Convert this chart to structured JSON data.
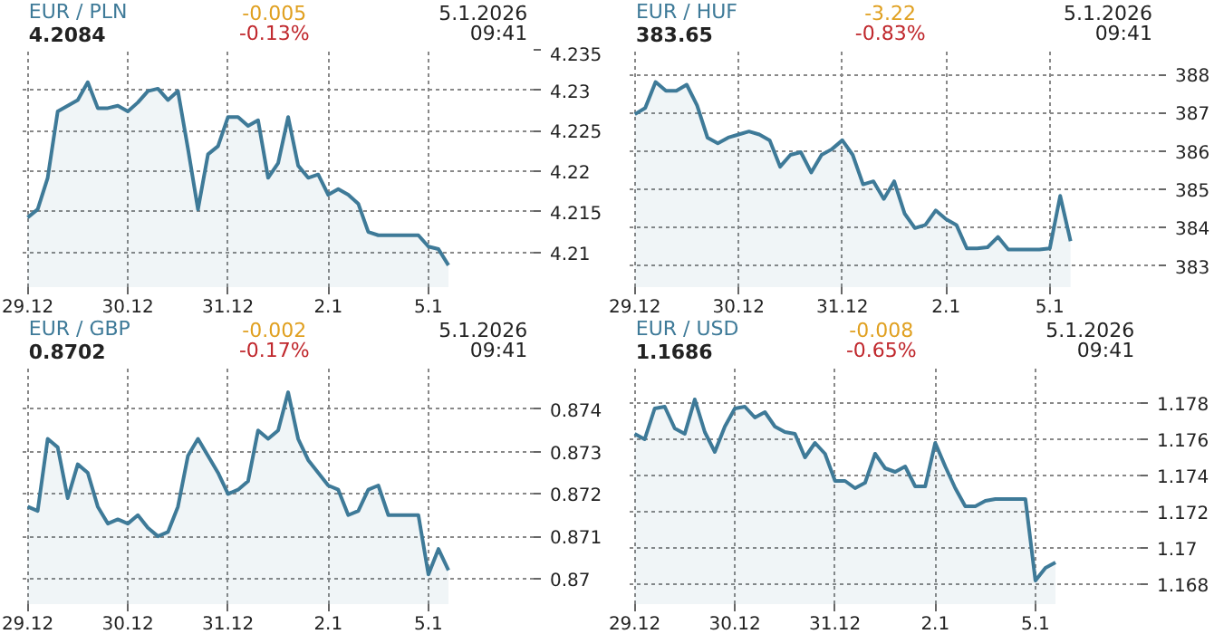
{
  "chart_data": [
    {
      "type": "area",
      "title": "EUR / PLN",
      "subtitle": "4.2084",
      "annotations": [
        "-0.005",
        "-0.13%",
        "5.1.2026",
        "09:41"
      ],
      "grid": true,
      "categories": [
        "29.12",
        null,
        null,
        null,
        null,
        null,
        null,
        null,
        null,
        null,
        "30.12",
        null,
        null,
        null,
        null,
        null,
        null,
        null,
        null,
        null,
        "31.12",
        null,
        null,
        null,
        null,
        null,
        null,
        null,
        null,
        null,
        "2.1",
        null,
        null,
        null,
        null,
        null,
        null,
        null,
        null,
        null,
        "5.1",
        null,
        null,
        null,
        null,
        null,
        null,
        null,
        null,
        null,
        null
      ],
      "ylim": [
        4.2057,
        4.235
      ],
      "yticks": [
        4.21,
        4.215,
        4.22,
        4.225,
        4.23,
        4.235
      ],
      "series": [
        {
          "color": "#3e7a98",
          "values": [
            4.2143,
            4.2153,
            4.2192,
            4.2274,
            4.2281,
            4.2288,
            4.231,
            4.2278,
            4.2278,
            4.2281,
            4.2274,
            4.2285,
            4.2299,
            4.2302,
            4.2288,
            4.2299,
            4.2228,
            4.2153,
            4.2221,
            4.2231,
            4.2267,
            4.2267,
            4.2256,
            4.2263,
            4.2192,
            4.221,
            4.2267,
            4.2207,
            4.2192,
            4.2196,
            4.2171,
            4.2178,
            4.2171,
            4.216,
            4.2125,
            4.2121,
            4.2121,
            4.2121,
            4.2121,
            4.2121,
            4.2107,
            4.2104,
            4.2084,
            null,
            null,
            null,
            null,
            null,
            null,
            null,
            null
          ]
        }
      ]
    },
    {
      "type": "area",
      "title": "EUR / HUF",
      "subtitle": "383.65",
      "annotations": [
        "-3.22",
        "-0.83%",
        "5.1.2026",
        "09:41"
      ],
      "grid": true,
      "categories": [
        "29.12",
        null,
        null,
        null,
        null,
        null,
        null,
        null,
        null,
        null,
        "30.12",
        null,
        null,
        null,
        null,
        null,
        null,
        null,
        null,
        null,
        "31.12",
        null,
        null,
        null,
        null,
        null,
        null,
        null,
        null,
        null,
        "2.1",
        null,
        null,
        null,
        null,
        null,
        null,
        null,
        null,
        null,
        "5.1",
        null,
        null,
        null,
        null,
        null,
        null,
        null,
        null,
        null,
        null
      ],
      "ylim": [
        382.45,
        388.64
      ],
      "yticks": [
        383,
        384,
        385,
        386,
        387,
        388
      ],
      "series": [
        {
          "color": "#3e7a98",
          "values": [
            386.96,
            387.12,
            387.8,
            387.57,
            387.57,
            387.73,
            387.19,
            386.35,
            386.2,
            386.35,
            386.43,
            386.51,
            386.43,
            386.28,
            385.59,
            385.9,
            385.97,
            385.44,
            385.9,
            386.05,
            386.28,
            385.9,
            385.13,
            385.21,
            384.75,
            385.21,
            384.37,
            383.99,
            384.07,
            384.45,
            384.22,
            384.07,
            383.46,
            383.46,
            383.49,
            383.76,
            383.43,
            383.43,
            383.43,
            383.43,
            383.46,
            384.83,
            383.65,
            null,
            null,
            null,
            null,
            null,
            null,
            null,
            null
          ]
        }
      ]
    },
    {
      "type": "area",
      "title": "EUR / GBP",
      "subtitle": "0.8702",
      "annotations": [
        "-0.002",
        "-0.17%",
        "5.1.2026",
        "09:41"
      ],
      "grid": true,
      "categories": [
        "29.12",
        null,
        null,
        null,
        null,
        null,
        null,
        null,
        null,
        null,
        "30.12",
        null,
        null,
        null,
        null,
        null,
        null,
        null,
        null,
        null,
        "31.12",
        null,
        null,
        null,
        null,
        null,
        null,
        null,
        null,
        null,
        "2.1",
        null,
        null,
        null,
        null,
        null,
        null,
        null,
        null,
        null,
        "5.1",
        null,
        null,
        null,
        null,
        null,
        null,
        null,
        null,
        null,
        null
      ],
      "ylim": [
        0.8694,
        0.875
      ],
      "yticks": [
        0.87,
        0.871,
        0.872,
        0.873,
        0.874
      ],
      "series": [
        {
          "color": "#3e7a98",
          "values": [
            0.8717,
            0.8716,
            0.8733,
            0.8731,
            0.8719,
            0.8727,
            0.8725,
            0.8717,
            0.8713,
            0.8714,
            0.8713,
            0.8715,
            0.8712,
            0.871,
            0.8711,
            0.8717,
            0.8729,
            0.8733,
            0.8729,
            0.8725,
            0.872,
            0.8721,
            0.8723,
            0.8735,
            0.8733,
            0.8735,
            0.8744,
            0.8733,
            0.8728,
            0.8725,
            0.8722,
            0.8721,
            0.8715,
            0.8716,
            0.8721,
            0.8722,
            0.8715,
            0.8715,
            0.8715,
            0.8715,
            0.8701,
            0.8707,
            0.8702,
            null,
            null,
            null,
            null,
            null,
            null,
            null,
            null
          ]
        }
      ]
    },
    {
      "type": "area",
      "title": "EUR / USD",
      "subtitle": "1.1686",
      "annotations": [
        "-0.008",
        "-0.65%",
        "5.1.2026",
        "09:41"
      ],
      "grid": true,
      "categories": [
        "29.12",
        null,
        null,
        null,
        null,
        null,
        null,
        null,
        null,
        null,
        "30.12",
        null,
        null,
        null,
        null,
        null,
        null,
        null,
        null,
        null,
        "31.12",
        null,
        null,
        null,
        null,
        null,
        null,
        null,
        null,
        null,
        "2.1",
        null,
        null,
        null,
        null,
        null,
        null,
        null,
        null,
        null,
        "5.1",
        null,
        null,
        null,
        null,
        null,
        null,
        null,
        null,
        null,
        null
      ],
      "ylim": [
        1.1669,
        1.18
      ],
      "yticks": [
        1.168,
        1.17,
        1.172,
        1.174,
        1.176,
        1.178
      ],
      "series": [
        {
          "color": "#3e7a98",
          "values": [
            1.1763,
            1.176,
            1.1777,
            1.1778,
            1.1766,
            1.1763,
            1.1782,
            1.1764,
            1.1753,
            1.1767,
            1.1777,
            1.1778,
            1.1772,
            1.1775,
            1.1767,
            1.1764,
            1.1763,
            1.175,
            1.1758,
            1.1752,
            1.1737,
            1.1737,
            1.1733,
            1.1736,
            1.1752,
            1.1744,
            1.1742,
            1.1745,
            1.1734,
            1.1734,
            1.1758,
            1.1745,
            1.1733,
            1.1723,
            1.1723,
            1.1726,
            1.1727,
            1.1727,
            1.1727,
            1.1727,
            1.1682,
            1.1689,
            1.1692,
            null,
            null,
            null,
            null,
            null,
            null,
            null,
            null
          ]
        }
      ]
    }
  ]
}
